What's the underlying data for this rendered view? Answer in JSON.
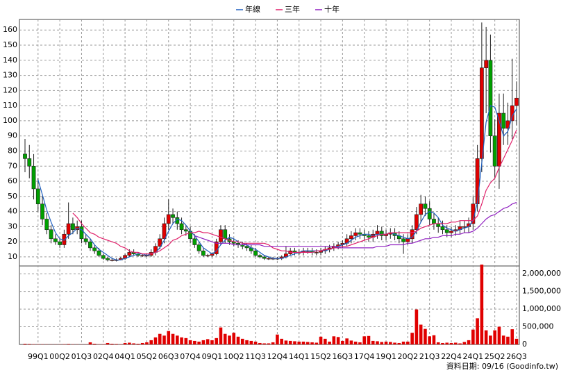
{
  "chart_data": {
    "type": "candlestick",
    "categories": [
      null,
      null,
      null,
      "99Q1",
      null,
      null,
      null,
      null,
      "00Q2",
      null,
      null,
      null,
      null,
      "01Q3",
      null,
      null,
      null,
      null,
      "02Q4",
      null,
      null,
      null,
      null,
      "04Q1",
      null,
      null,
      null,
      null,
      "05Q2",
      null,
      null,
      null,
      null,
      "06Q3",
      null,
      null,
      null,
      null,
      "07Q4",
      null,
      null,
      null,
      null,
      "09Q1",
      null,
      null,
      null,
      null,
      "10Q2",
      null,
      null,
      null,
      null,
      "11Q3",
      null,
      null,
      null,
      null,
      "12Q4",
      null,
      null,
      null,
      null,
      "14Q1",
      null,
      null,
      null,
      null,
      "15Q2",
      null,
      null,
      null,
      null,
      "16Q3",
      null,
      null,
      null,
      null,
      "17Q4",
      null,
      null,
      null,
      null,
      "19Q1",
      null,
      null,
      null,
      null,
      "20Q2",
      null,
      null,
      null,
      null,
      "21Q3",
      null,
      null,
      null,
      null,
      "22Q4",
      null,
      null,
      null,
      null,
      "24Q1",
      null,
      null,
      null,
      null,
      "25Q2",
      null,
      null,
      null,
      null,
      "26Q3"
    ],
    "open": [
      78,
      75,
      70,
      55,
      45,
      35,
      28,
      22,
      20,
      18,
      25,
      32,
      28,
      30,
      22,
      20,
      16,
      14,
      11,
      9,
      8,
      8,
      8,
      9,
      11,
      13,
      12,
      11,
      11,
      11,
      13,
      17,
      22,
      32,
      38,
      36,
      32,
      28,
      27,
      22,
      18,
      14,
      11,
      11,
      12,
      20,
      28,
      22,
      20,
      19,
      18,
      17,
      16,
      14,
      11,
      10,
      9,
      9,
      9,
      9,
      10,
      12,
      14,
      13,
      13,
      14,
      14,
      13,
      13,
      14,
      15,
      16,
      17,
      18,
      19,
      22,
      24,
      26,
      25,
      24,
      23,
      25,
      27,
      24,
      25,
      26,
      24,
      22,
      20,
      22,
      28,
      38,
      45,
      42,
      35,
      32,
      30,
      28,
      26,
      27,
      28,
      30,
      30,
      32,
      45,
      75,
      135,
      140,
      90,
      70,
      105,
      95,
      100,
      110
    ],
    "high": [
      88,
      84,
      78,
      62,
      50,
      39,
      31,
      25,
      22,
      28,
      46,
      36,
      34,
      34,
      25,
      22,
      18,
      16,
      12,
      10,
      9,
      9,
      10,
      12,
      15,
      15,
      13,
      12,
      12,
      15,
      19,
      25,
      36,
      48,
      42,
      40,
      36,
      31,
      30,
      25,
      20,
      16,
      12,
      13,
      22,
      31,
      31,
      25,
      22,
      21,
      20,
      19,
      18,
      16,
      12,
      11,
      10,
      10,
      10,
      11,
      17,
      16,
      16,
      15,
      16,
      16,
      16,
      15,
      16,
      17,
      18,
      19,
      20,
      21,
      25,
      27,
      29,
      29,
      28,
      27,
      28,
      31,
      30,
      28,
      29,
      29,
      27,
      25,
      25,
      31,
      43,
      51,
      50,
      47,
      39,
      36,
      34,
      31,
      30,
      31,
      34,
      34,
      36,
      50,
      84,
      165,
      162,
      157,
      101,
      118,
      118,
      112,
      141,
      126
    ],
    "low": [
      66,
      62,
      48,
      40,
      31,
      25,
      19,
      18,
      16,
      16,
      22,
      25,
      25,
      19,
      18,
      14,
      12,
      10,
      8,
      7,
      7,
      7,
      8,
      8,
      10,
      11,
      10,
      10,
      10,
      10,
      11,
      15,
      19,
      28,
      32,
      28,
      25,
      24,
      19,
      16,
      12,
      10,
      10,
      10,
      11,
      18,
      19,
      18,
      17,
      16,
      15,
      14,
      12,
      10,
      9,
      8,
      8,
      8,
      8,
      8,
      9,
      11,
      11,
      11,
      11,
      12,
      11,
      11,
      11,
      12,
      13,
      14,
      15,
      16,
      17,
      19,
      21,
      22,
      21,
      20,
      20,
      22,
      21,
      21,
      22,
      21,
      19,
      12,
      18,
      19,
      25,
      33,
      37,
      31,
      28,
      26,
      25,
      23,
      23,
      24,
      25,
      26,
      26,
      28,
      40,
      66,
      105,
      79,
      62,
      55,
      84,
      84,
      88,
      97
    ],
    "close": [
      75,
      70,
      55,
      45,
      35,
      28,
      22,
      20,
      18,
      25,
      32,
      28,
      30,
      22,
      20,
      16,
      14,
      11,
      9,
      8,
      8,
      8,
      9,
      11,
      13,
      12,
      11,
      11,
      11,
      13,
      17,
      22,
      32,
      38,
      36,
      32,
      28,
      27,
      22,
      18,
      14,
      11,
      11,
      12,
      20,
      28,
      22,
      20,
      19,
      18,
      17,
      16,
      14,
      11,
      10,
      9,
      9,
      9,
      9,
      10,
      12,
      14,
      13,
      13,
      14,
      14,
      13,
      13,
      14,
      15,
      16,
      17,
      18,
      19,
      22,
      24,
      26,
      25,
      24,
      23,
      25,
      27,
      24,
      25,
      26,
      24,
      22,
      20,
      22,
      28,
      38,
      45,
      42,
      35,
      32,
      30,
      28,
      26,
      27,
      28,
      30,
      30,
      32,
      45,
      75,
      135,
      140,
      90,
      70,
      105,
      95,
      100,
      110,
      115
    ],
    "up_color": "#e00000",
    "down_color": "#00a000",
    "series": [
      {
        "name": "年線",
        "color": "#2060c0",
        "values": [
          null,
          null,
          null,
          61,
          51,
          41,
          33,
          26,
          22,
          21,
          24,
          26,
          29,
          28,
          25,
          22,
          18,
          15,
          13,
          11,
          9,
          8,
          8,
          9,
          10,
          11,
          12,
          12,
          11,
          12,
          13,
          16,
          21,
          27,
          32,
          35,
          34,
          31,
          27,
          24,
          20,
          16,
          14,
          12,
          14,
          18,
          21,
          23,
          22,
          20,
          19,
          18,
          16,
          15,
          13,
          11,
          10,
          9,
          9,
          9,
          10,
          11,
          12,
          13,
          14,
          14,
          14,
          14,
          14,
          14,
          15,
          16,
          17,
          18,
          19,
          21,
          23,
          24,
          25,
          25,
          24,
          25,
          25,
          25,
          26,
          25,
          24,
          23,
          22,
          23,
          27,
          33,
          38,
          40,
          39,
          36,
          31,
          29,
          28,
          27,
          28,
          29,
          30,
          34,
          46,
          72,
          99,
          110,
          109,
          100,
          90,
          93,
          103,
          108
        ]
      },
      {
        "name": "三年",
        "color": "#e0206a",
        "values": [
          null,
          null,
          null,
          null,
          null,
          null,
          null,
          null,
          null,
          null,
          null,
          39,
          36,
          32,
          29,
          26,
          25,
          23,
          22,
          21,
          20,
          19,
          17,
          16,
          14,
          13,
          13,
          12,
          12,
          12,
          13,
          14,
          16,
          18,
          21,
          22,
          24,
          25,
          26,
          26,
          27,
          26,
          26,
          25,
          24,
          23,
          22,
          21,
          20,
          20,
          19,
          19,
          19,
          19,
          19,
          19,
          18,
          16,
          15,
          14,
          14,
          13,
          13,
          13,
          13,
          13,
          13,
          14,
          14,
          15,
          15,
          16,
          16,
          17,
          17,
          18,
          19,
          20,
          21,
          22,
          23,
          24,
          25,
          25,
          26,
          26,
          26,
          26,
          26,
          26,
          27,
          29,
          30,
          31,
          32,
          32,
          32,
          32,
          33,
          33,
          34,
          34,
          34,
          34,
          37,
          45,
          54,
          59,
          62,
          69,
          75,
          81,
          87,
          94
        ]
      },
      {
        "name": "十年",
        "color": "#9020c0",
        "values": [
          null,
          null,
          null,
          null,
          null,
          null,
          null,
          null,
          null,
          null,
          null,
          null,
          null,
          null,
          null,
          null,
          null,
          null,
          null,
          null,
          null,
          null,
          null,
          null,
          null,
          null,
          null,
          null,
          null,
          null,
          null,
          null,
          null,
          null,
          null,
          null,
          null,
          null,
          null,
          24,
          23,
          22,
          21,
          20,
          19,
          19,
          19,
          19,
          18,
          18,
          18,
          18,
          18,
          18,
          18,
          17,
          17,
          17,
          17,
          17,
          17,
          17,
          17,
          17,
          17,
          17,
          17,
          17,
          17,
          17,
          17,
          17,
          16,
          16,
          16,
          16,
          16,
          16,
          16,
          16,
          16,
          17,
          17,
          17,
          18,
          18,
          18,
          18,
          19,
          19,
          20,
          21,
          22,
          22,
          23,
          23,
          24,
          24,
          24,
          25,
          25,
          26,
          26,
          27,
          29,
          32,
          35,
          37,
          38,
          40,
          42,
          43,
          45,
          46
        ]
      }
    ],
    "volume": {
      "axis": "y2",
      "color": "#e00000",
      "values": [
        20000,
        15000,
        10000,
        8000,
        8000,
        6000,
        5000,
        5000,
        6000,
        10000,
        15000,
        8000,
        6000,
        5000,
        6000,
        60000,
        20000,
        8000,
        10000,
        40000,
        20000,
        15000,
        10000,
        40000,
        50000,
        30000,
        20000,
        40000,
        60000,
        120000,
        200000,
        300000,
        250000,
        380000,
        300000,
        250000,
        200000,
        180000,
        120000,
        100000,
        80000,
        120000,
        150000,
        120000,
        180000,
        480000,
        300000,
        250000,
        330000,
        220000,
        160000,
        120000,
        100000,
        80000,
        40000,
        30000,
        30000,
        60000,
        280000,
        160000,
        110000,
        100000,
        90000,
        80000,
        80000,
        70000,
        60000,
        50000,
        220000,
        160000,
        80000,
        230000,
        210000,
        100000,
        170000,
        110000,
        80000,
        60000,
        230000,
        240000,
        100000,
        90000,
        70000,
        80000,
        70000,
        50000,
        40000,
        80000,
        80000,
        330000,
        990000,
        560000,
        440000,
        230000,
        260000,
        60000,
        40000,
        50000,
        40000,
        50000,
        30000,
        70000,
        120000,
        420000,
        740000,
        2260000,
        400000,
        250000,
        400000,
        500000,
        250000,
        220000,
        430000,
        160000
      ]
    },
    "ylim": [
      4,
      167
    ],
    "yticks": [
      10,
      20,
      30,
      40,
      50,
      60,
      70,
      80,
      90,
      100,
      110,
      120,
      130,
      140,
      150,
      160
    ],
    "y2lim": [
      0,
      2220000
    ],
    "y2ticks": [
      0,
      {
        "value": 500000,
        "label": "500,000"
      },
      {
        "value": 1000000,
        "label": "1,000,000"
      },
      {
        "value": 1500000,
        "label": "1,500,000"
      },
      {
        "value": 2000000,
        "label": "2,000,000"
      }
    ],
    "grid": true,
    "legend": "top",
    "source": "資料日期: 09/16 (Goodinfo.tw)"
  }
}
